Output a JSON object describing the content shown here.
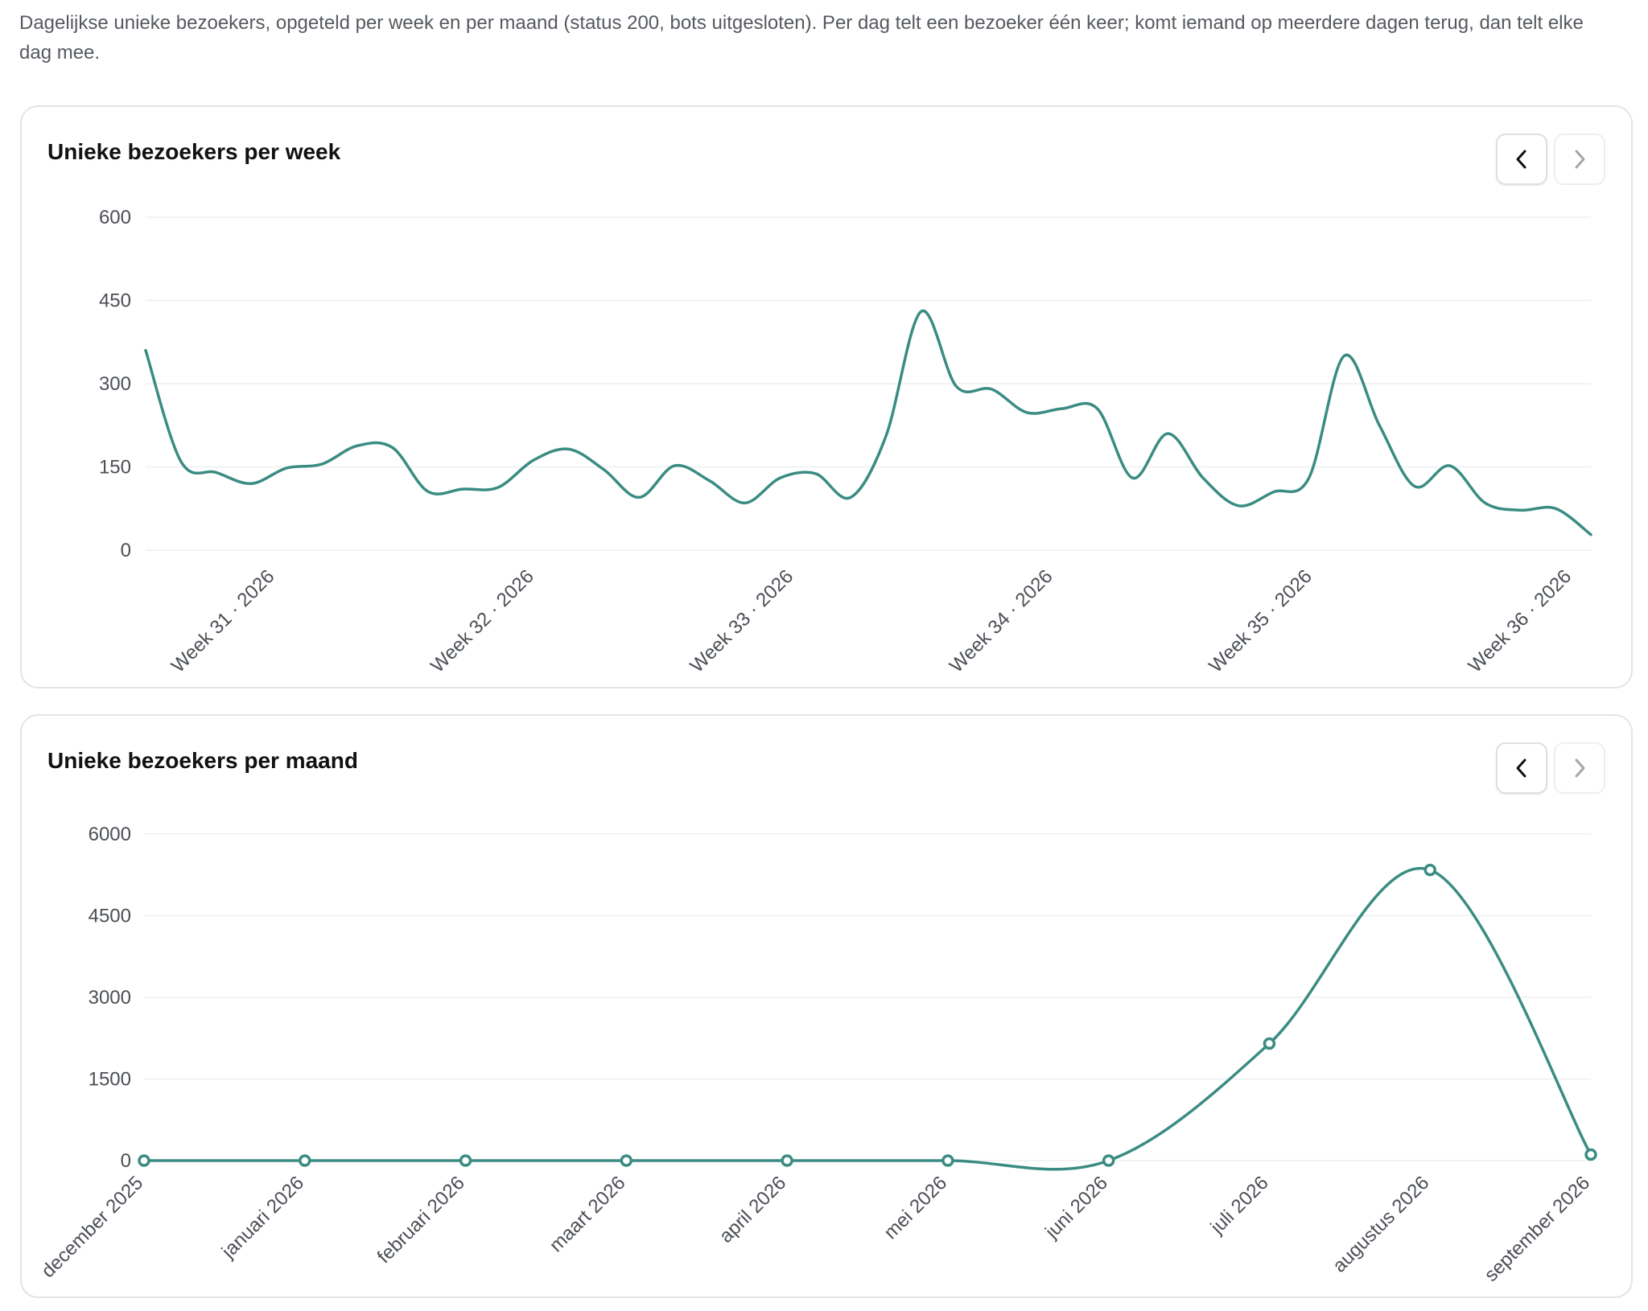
{
  "intro_text": "Dagelijkse unieke bezoekers, opgeteld per week en per maand (status 200, bots uitgesloten). Per dag telt een bezoeker één keer; komt iemand op meerdere dagen terug, dan telt elke dag mee.",
  "colors": {
    "line": "#3a8c82",
    "grid": "#eeeff1",
    "axis_text": "#4b4f55"
  },
  "icons": {
    "prev": "chevron-left-icon",
    "next": "chevron-right-icon"
  },
  "chart_data": [
    {
      "type": "line",
      "title": "Unieke bezoekers per week",
      "yticks": [
        0,
        150,
        300,
        450,
        600
      ],
      "ylim": [
        0,
        600
      ],
      "xlim": [
        0,
        39
      ],
      "x_tick_positions": [
        3.5,
        10.5,
        17.5,
        24.5,
        31.5,
        38.5
      ],
      "x_tick_labels": [
        "Week 31 · 2026",
        "Week 32 · 2026",
        "Week 33 · 2026",
        "Week 34 · 2026",
        "Week 35 · 2026",
        "Week 36 · 2026"
      ],
      "grid": true,
      "markers": false,
      "values": [
        360,
        160,
        140,
        120,
        148,
        155,
        188,
        185,
        106,
        110,
        113,
        162,
        182,
        145,
        95,
        152,
        125,
        85,
        130,
        138,
        95,
        205,
        430,
        295,
        290,
        248,
        255,
        255,
        130,
        210,
        130,
        80,
        105,
        130,
        350,
        225,
        115,
        152,
        85,
        72,
        75,
        28
      ]
    },
    {
      "type": "line",
      "title": "Unieke bezoekers per maand",
      "yticks": [
        0,
        1500,
        3000,
        4500,
        6000
      ],
      "ylim": [
        0,
        6000
      ],
      "categories": [
        "december 2025",
        "januari 2026",
        "februari 2026",
        "maart 2026",
        "april 2026",
        "mei 2026",
        "juni 2026",
        "juli 2026",
        "augustus 2026",
        "september 2026"
      ],
      "grid": true,
      "markers": true,
      "values": [
        0,
        0,
        0,
        0,
        0,
        0,
        0,
        2150,
        5340,
        110
      ]
    }
  ]
}
